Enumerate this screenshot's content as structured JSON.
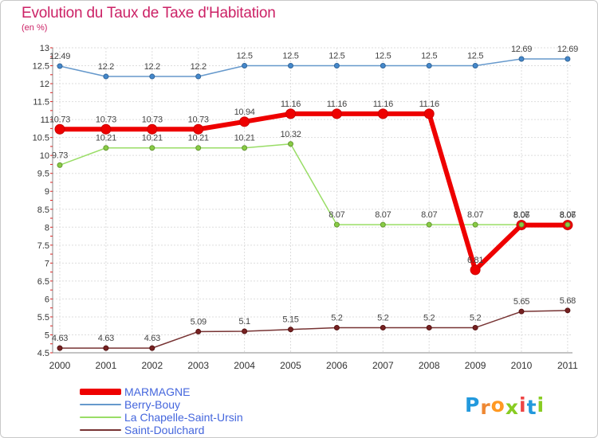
{
  "title": "Evolution du Taux de Taxe d'Habitation",
  "subtitle": "(en %)",
  "logo": {
    "text": "Proxiti",
    "letters": [
      "P",
      "r",
      "o",
      "x",
      "i",
      "t",
      "i"
    ],
    "colors": [
      "#2299dd",
      "#ee8833",
      "#ff9922",
      "#88cc22",
      "#ee4444",
      "#2299dd",
      "#88cc22"
    ]
  },
  "chart_data": {
    "type": "line",
    "x": [
      "2000",
      "2001",
      "2002",
      "2003",
      "2004",
      "2005",
      "2006",
      "2007",
      "2008",
      "2009",
      "2010",
      "2011"
    ],
    "y_ticks": [
      "4.5",
      "5",
      "5.5",
      "6",
      "6.5",
      "7",
      "7.5",
      "8",
      "8.5",
      "9",
      "9.5",
      "10",
      "10.5",
      "11",
      "11.5",
      "12",
      "12.5",
      "13"
    ],
    "ylim": [
      4.5,
      13
    ],
    "grid": "horizontal dashed",
    "legend_position": "bottom-left",
    "series": [
      {
        "name": "MARMAGNE",
        "color": "#ee0000",
        "values": [
          10.73,
          10.73,
          10.73,
          10.73,
          10.94,
          11.16,
          11.16,
          11.16,
          11.16,
          6.81,
          8.06,
          8.06
        ],
        "labels": [
          "10.73",
          "10.73",
          "10.73",
          "10.73",
          "10.94",
          "11.16",
          "11.16",
          "11.16",
          "11.16",
          "6.81",
          "8.06",
          "8.06"
        ]
      },
      {
        "name": "Berry-Bouy",
        "color": "#6699cc",
        "values": [
          12.49,
          12.2,
          12.2,
          12.2,
          12.5,
          12.5,
          12.5,
          12.5,
          12.5,
          12.5,
          12.69,
          12.69
        ],
        "labels": [
          "12.49",
          "12.2",
          "12.2",
          "12.2",
          "12.5",
          "12.5",
          "12.5",
          "12.5",
          "12.5",
          "12.5",
          "12.69",
          "12.69"
        ]
      },
      {
        "name": "La Chapelle-Saint-Ursin",
        "color": "#99dd66",
        "values": [
          9.73,
          10.21,
          10.21,
          10.21,
          10.21,
          10.32,
          8.07,
          8.07,
          8.07,
          8.07,
          8.07,
          8.07
        ],
        "labels": [
          "9.73",
          "10.21",
          "10.21",
          "10.21",
          "10.21",
          "10.32",
          "8.07",
          "8.07",
          "8.07",
          "8.07",
          "8.07",
          "8.07"
        ]
      },
      {
        "name": "Saint-Doulchard",
        "color": "#773333",
        "values": [
          4.63,
          4.63,
          4.63,
          5.09,
          5.1,
          5.15,
          5.2,
          5.2,
          5.2,
          5.2,
          5.65,
          5.68
        ],
        "labels": [
          "4.63",
          "4.63",
          "4.63",
          "5.09",
          "5.1",
          "5.15",
          "5.2",
          "5.2",
          "5.2",
          "5.2",
          "5.65",
          "5.68"
        ]
      }
    ]
  }
}
